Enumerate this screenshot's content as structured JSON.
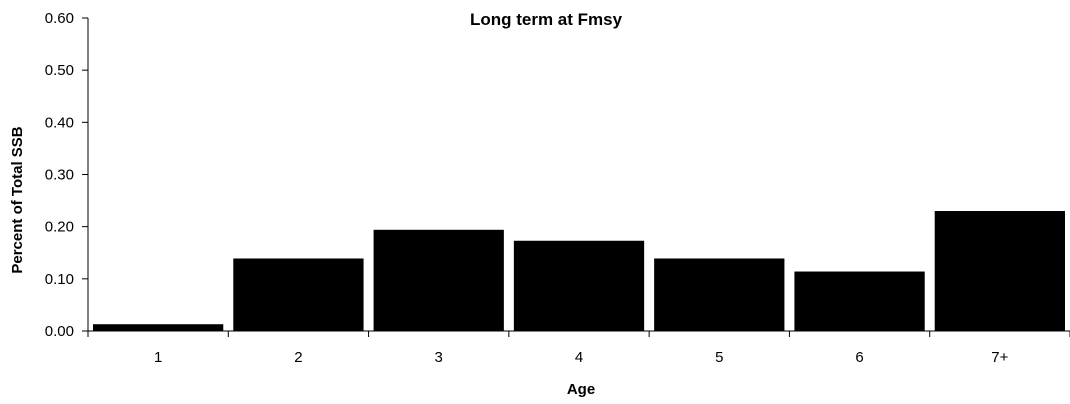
{
  "chart_data": {
    "type": "bar",
    "title": "Long term at Fmsy",
    "xlabel": "Age",
    "ylabel": "Percent of Total SSB",
    "categories": [
      "1",
      "2",
      "3",
      "4",
      "5",
      "6",
      "7+"
    ],
    "values": [
      0.013,
      0.139,
      0.194,
      0.173,
      0.139,
      0.114,
      0.23
    ],
    "ylim": [
      0,
      0.6
    ],
    "yticks": [
      "0.00",
      "0.10",
      "0.20",
      "0.30",
      "0.40",
      "0.50",
      "0.60"
    ],
    "grid": false,
    "legend": "none",
    "bar_color": "#000000"
  }
}
